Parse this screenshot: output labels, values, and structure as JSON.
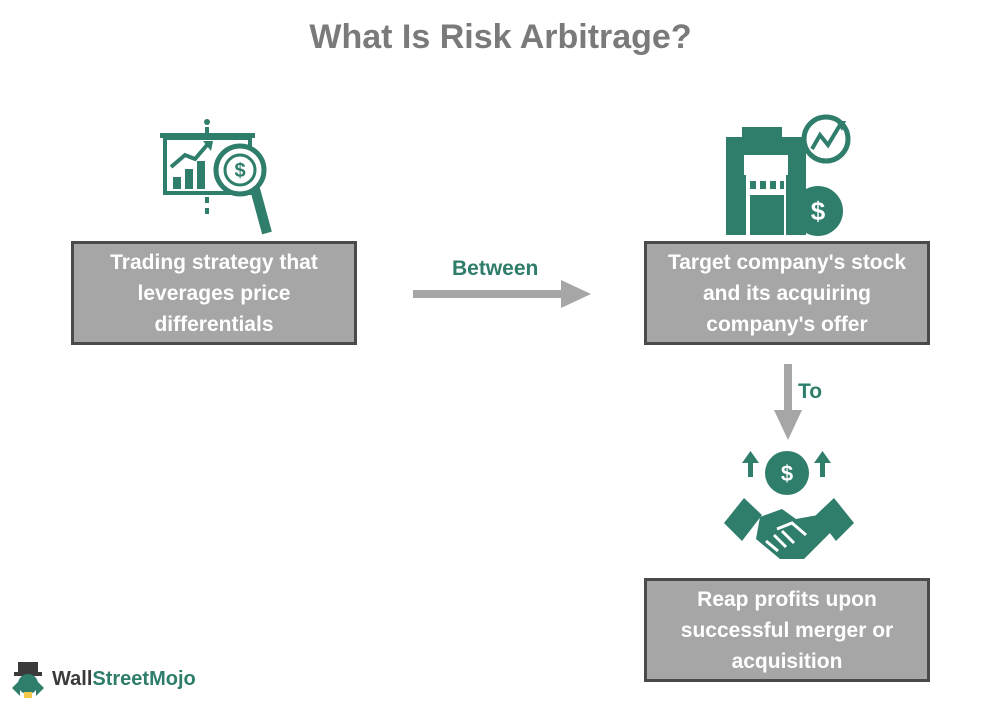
{
  "title": "What Is Risk Arbitrage?",
  "nodes": {
    "strategy": {
      "lines": [
        "Trading strategy that",
        "leverages price",
        "differentials"
      ],
      "icon": "presentation-chart-magnifier-dollar-icon"
    },
    "target": {
      "lines": [
        "Target company's stock",
        "and its acquiring",
        "company's offer"
      ],
      "icon": "building-growth-dollar-icon"
    },
    "profits": {
      "lines": [
        "Reap profits upon",
        "successful merger or",
        "acquisition"
      ],
      "icon": "handshake-dollar-icon"
    }
  },
  "connectors": {
    "between": "Between",
    "to": "To"
  },
  "brand": {
    "name_part1": "Wall",
    "name_part2": "StreetMojo"
  },
  "colors": {
    "accent": "#2f7d6b",
    "box": "#a6a6a6",
    "box_border": "#4a4a4a",
    "arrow": "#a6a6a6",
    "title": "#7a7a7a"
  }
}
